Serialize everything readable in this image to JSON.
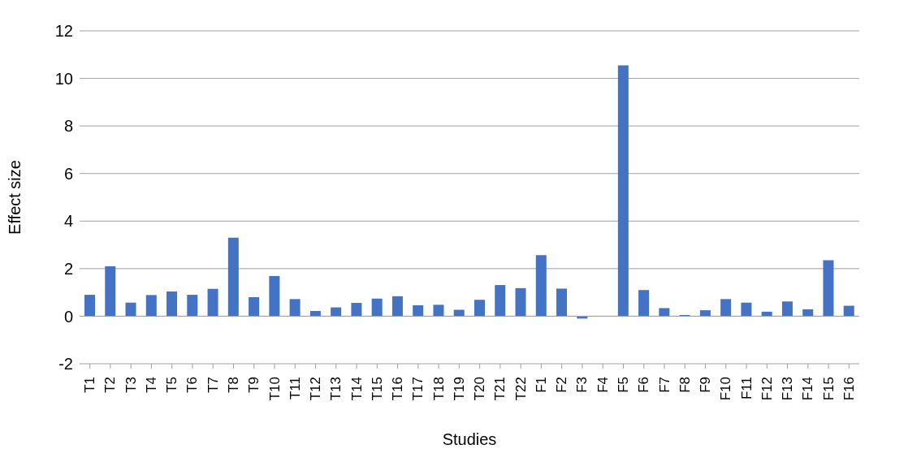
{
  "chart_data": {
    "type": "bar",
    "xlabel": "Studies",
    "ylabel": "Effect size",
    "categories": [
      "T1",
      "T2",
      "T3",
      "T4",
      "T5",
      "T6",
      "T7",
      "T8",
      "T9",
      "T10",
      "T11",
      "T12",
      "T13",
      "T14",
      "T15",
      "T16",
      "T17",
      "T18",
      "T19",
      "T20",
      "T21",
      "T22",
      "F1",
      "F2",
      "F3",
      "F4",
      "F5",
      "F6",
      "F7",
      "F8",
      "F9",
      "F10",
      "F11",
      "F12",
      "F13",
      "F14",
      "F15",
      "F16"
    ],
    "values": [
      0.9,
      2.1,
      0.57,
      0.89,
      1.04,
      0.9,
      1.15,
      3.3,
      0.8,
      1.69,
      0.72,
      0.22,
      0.37,
      0.56,
      0.74,
      0.84,
      0.46,
      0.48,
      0.27,
      0.69,
      1.31,
      1.18,
      2.57,
      1.16,
      -0.1,
      0,
      10.55,
      1.1,
      0.34,
      0.05,
      0.25,
      0.72,
      0.57,
      0.19,
      0.62,
      0.29,
      2.35,
      0.44
    ],
    "color": "#4472c4",
    "ylim": [
      -2,
      12
    ],
    "yticks": [
      -2,
      0,
      2,
      4,
      6,
      8,
      10,
      12
    ],
    "grid": "y"
  }
}
